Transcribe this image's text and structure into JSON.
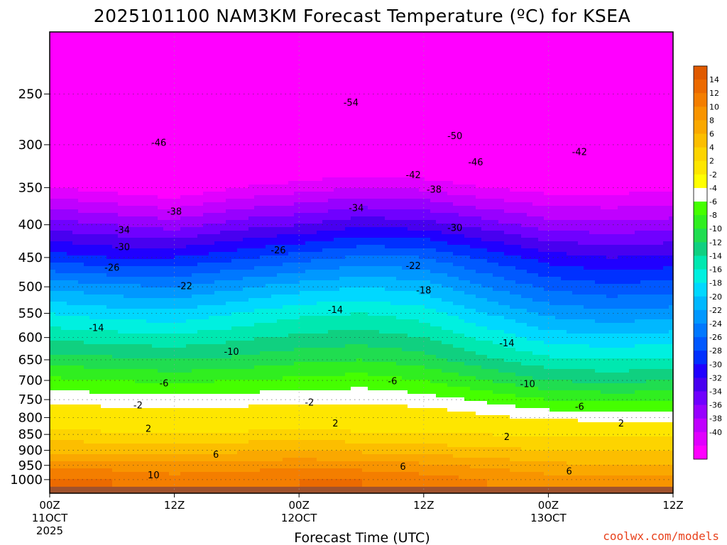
{
  "chart_data": {
    "type": "heatmap",
    "title": "2025101100 NAM3KM Forecast Temperature (ºC) for KSEA",
    "xlabel": "Forecast Time (UTC)",
    "ylabel": "",
    "y_log_pressure": true,
    "ylim": [
      1050,
      200
    ],
    "y_ticks": [
      250,
      300,
      350,
      400,
      450,
      500,
      550,
      600,
      650,
      700,
      750,
      800,
      850,
      900,
      950,
      1000
    ],
    "x_range_hours": [
      0,
      60
    ],
    "x_ticks": [
      {
        "hour": 0,
        "lines": [
          "00Z",
          "11OCT",
          "2025"
        ]
      },
      {
        "hour": 12,
        "lines": [
          "12Z"
        ]
      },
      {
        "hour": 24,
        "lines": [
          "00Z",
          "12OCT"
        ]
      },
      {
        "hour": 36,
        "lines": [
          "12Z"
        ]
      },
      {
        "hour": 48,
        "lines": [
          "00Z",
          "13OCT"
        ]
      },
      {
        "hour": 60,
        "lines": [
          "12Z"
        ]
      }
    ],
    "grid": true,
    "colorbar": {
      "placement": "right",
      "labels": [
        "14",
        "12",
        "10",
        "8",
        "6",
        "4",
        "2",
        "-2",
        "-4",
        "-6",
        "-8",
        "-10",
        "-12",
        "-14",
        "-16",
        "-18",
        "-20",
        "-22",
        "-24",
        "-26",
        "-28",
        "-30",
        "-32",
        "-34",
        "-36",
        "-38",
        "-40"
      ],
      "colors": [
        "#e05a00",
        "#ec6a00",
        "#f47e00",
        "#f89400",
        "#faa800",
        "#fcbe00",
        "#fdd400",
        "#fee600",
        "#ffff00",
        "#ffffff",
        "#45ff00",
        "#30ee20",
        "#20dd50",
        "#10d080",
        "#00e8b0",
        "#00f0e0",
        "#00d8ff",
        "#00b8ff",
        "#0098ff",
        "#0078ff",
        "#0058ff",
        "#0030ff",
        "#2000ff",
        "#4800f0",
        "#7000ff",
        "#9800ff",
        "#c000ff",
        "#e000ff",
        "#ff00ff"
      ]
    },
    "surface_color": "#a0522d",
    "profiles": [
      {
        "hour": 0,
        "levels": [
          [
            1000,
            12
          ],
          [
            950,
            9
          ],
          [
            900,
            5.5
          ],
          [
            850,
            3
          ],
          [
            800,
            0
          ],
          [
            750,
            -2.5
          ],
          [
            700,
            -5.5
          ],
          [
            650,
            -9
          ],
          [
            600,
            -12.5
          ],
          [
            550,
            -16
          ],
          [
            500,
            -20.5
          ],
          [
            450,
            -27
          ],
          [
            400,
            -33
          ],
          [
            350,
            -40
          ],
          [
            300,
            -47
          ],
          [
            250,
            -53
          ],
          [
            200,
            -57
          ]
        ]
      },
      {
        "hour": 6,
        "levels": [
          [
            1000,
            12
          ],
          [
            950,
            9
          ],
          [
            900,
            5.5
          ],
          [
            850,
            2.5
          ],
          [
            800,
            -0.5
          ],
          [
            750,
            -3
          ],
          [
            700,
            -6
          ],
          [
            650,
            -9.5
          ],
          [
            600,
            -13
          ],
          [
            550,
            -17
          ],
          [
            500,
            -21.5
          ],
          [
            450,
            -28
          ],
          [
            400,
            -34
          ],
          [
            350,
            -41
          ],
          [
            300,
            -48
          ],
          [
            250,
            -53
          ],
          [
            200,
            -57
          ]
        ]
      },
      {
        "hour": 12,
        "levels": [
          [
            1000,
            11
          ],
          [
            950,
            8.5
          ],
          [
            900,
            5.5
          ],
          [
            850,
            2.5
          ],
          [
            800,
            -0.5
          ],
          [
            750,
            -3
          ],
          [
            700,
            -6.5
          ],
          [
            650,
            -10
          ],
          [
            600,
            -13.5
          ],
          [
            550,
            -17.5
          ],
          [
            500,
            -22
          ],
          [
            450,
            -28
          ],
          [
            400,
            -35
          ],
          [
            350,
            -42
          ],
          [
            300,
            -49
          ],
          [
            250,
            -54
          ],
          [
            200,
            -57
          ]
        ]
      },
      {
        "hour": 18,
        "levels": [
          [
            1000,
            11.5
          ],
          [
            950,
            9
          ],
          [
            900,
            5.5
          ],
          [
            850,
            2.5
          ],
          [
            800,
            -0.5
          ],
          [
            750,
            -3
          ],
          [
            700,
            -6
          ],
          [
            650,
            -9.5
          ],
          [
            600,
            -12.5
          ],
          [
            550,
            -16
          ],
          [
            500,
            -20.5
          ],
          [
            450,
            -26.5
          ],
          [
            400,
            -33
          ],
          [
            350,
            -40
          ],
          [
            300,
            -47
          ],
          [
            250,
            -53
          ],
          [
            200,
            -57
          ]
        ]
      },
      {
        "hour": 24,
        "levels": [
          [
            1000,
            12
          ],
          [
            950,
            9.5
          ],
          [
            900,
            6
          ],
          [
            850,
            3
          ],
          [
            800,
            0
          ],
          [
            750,
            -2.5
          ],
          [
            700,
            -5.5
          ],
          [
            650,
            -8.5
          ],
          [
            600,
            -11.5
          ],
          [
            550,
            -14.5
          ],
          [
            500,
            -19
          ],
          [
            450,
            -25
          ],
          [
            400,
            -32
          ],
          [
            350,
            -39
          ],
          [
            300,
            -46
          ],
          [
            250,
            -53
          ],
          [
            200,
            -57
          ]
        ]
      },
      {
        "hour": 30,
        "levels": [
          [
            1000,
            12
          ],
          [
            950,
            9
          ],
          [
            900,
            5.5
          ],
          [
            850,
            2.5
          ],
          [
            800,
            -0.5
          ],
          [
            750,
            -2.5
          ],
          [
            700,
            -5
          ],
          [
            650,
            -8
          ],
          [
            600,
            -11
          ],
          [
            550,
            -14
          ],
          [
            500,
            -18
          ],
          [
            450,
            -23.5
          ],
          [
            400,
            -30.5
          ],
          [
            350,
            -38
          ],
          [
            300,
            -45.5
          ],
          [
            250,
            -53
          ],
          [
            200,
            -57
          ]
        ]
      },
      {
        "hour": 36,
        "levels": [
          [
            1000,
            11
          ],
          [
            950,
            8.5
          ],
          [
            900,
            5
          ],
          [
            850,
            2.5
          ],
          [
            800,
            -0.5
          ],
          [
            750,
            -3
          ],
          [
            700,
            -6
          ],
          [
            650,
            -9
          ],
          [
            600,
            -12
          ],
          [
            550,
            -15
          ],
          [
            500,
            -19
          ],
          [
            450,
            -24
          ],
          [
            400,
            -31
          ],
          [
            350,
            -38.5
          ],
          [
            300,
            -46
          ],
          [
            250,
            -53
          ],
          [
            200,
            -57
          ]
        ]
      },
      {
        "hour": 42,
        "levels": [
          [
            1000,
            10
          ],
          [
            950,
            7.5
          ],
          [
            900,
            4.5
          ],
          [
            850,
            2
          ],
          [
            800,
            -1.5
          ],
          [
            750,
            -4.5
          ],
          [
            700,
            -8
          ],
          [
            650,
            -11.5
          ],
          [
            600,
            -14.5
          ],
          [
            550,
            -18
          ],
          [
            500,
            -22
          ],
          [
            450,
            -26.5
          ],
          [
            400,
            -33
          ],
          [
            350,
            -40
          ],
          [
            300,
            -46.5
          ],
          [
            250,
            -52
          ],
          [
            200,
            -56
          ]
        ]
      },
      {
        "hour": 48,
        "levels": [
          [
            1000,
            9
          ],
          [
            950,
            6.5
          ],
          [
            900,
            4
          ],
          [
            850,
            1.5
          ],
          [
            800,
            -2.5
          ],
          [
            750,
            -6
          ],
          [
            700,
            -10
          ],
          [
            650,
            -13.5
          ],
          [
            600,
            -17
          ],
          [
            550,
            -20.5
          ],
          [
            500,
            -24.5
          ],
          [
            450,
            -29
          ],
          [
            400,
            -35
          ],
          [
            350,
            -41
          ],
          [
            300,
            -46
          ],
          [
            250,
            -50
          ],
          [
            200,
            -54
          ]
        ]
      },
      {
        "hour": 54,
        "levels": [
          [
            1000,
            8.5
          ],
          [
            950,
            6
          ],
          [
            900,
            4
          ],
          [
            850,
            1.5
          ],
          [
            800,
            -3
          ],
          [
            750,
            -6.5
          ],
          [
            700,
            -10.5
          ],
          [
            650,
            -14
          ],
          [
            600,
            -17.5
          ],
          [
            550,
            -21.5
          ],
          [
            500,
            -25.5
          ],
          [
            450,
            -30
          ],
          [
            400,
            -35.5
          ],
          [
            350,
            -41
          ],
          [
            300,
            -45
          ],
          [
            250,
            -49
          ],
          [
            200,
            -53
          ]
        ]
      },
      {
        "hour": 60,
        "levels": [
          [
            1000,
            8.5
          ],
          [
            950,
            6
          ],
          [
            900,
            4
          ],
          [
            850,
            1.5
          ],
          [
            800,
            -3
          ],
          [
            750,
            -6.5
          ],
          [
            700,
            -10
          ],
          [
            650,
            -13.5
          ],
          [
            600,
            -17
          ],
          [
            550,
            -21
          ],
          [
            500,
            -25
          ],
          [
            450,
            -29.5
          ],
          [
            400,
            -35
          ],
          [
            350,
            -40.5
          ],
          [
            300,
            -44.5
          ],
          [
            250,
            -48
          ],
          [
            200,
            -52
          ]
        ]
      }
    ],
    "contour_labels": [
      {
        "text": "-54",
        "hour": 29,
        "p": 258
      },
      {
        "text": "-50",
        "hour": 39,
        "p": 291
      },
      {
        "text": "-46",
        "hour": 10.5,
        "p": 298
      },
      {
        "text": "-46",
        "hour": 41,
        "p": 320
      },
      {
        "text": "-42",
        "hour": 51,
        "p": 308
      },
      {
        "text": "-42",
        "hour": 35,
        "p": 335
      },
      {
        "text": "-38",
        "hour": 37,
        "p": 353
      },
      {
        "text": "-38",
        "hour": 12,
        "p": 382
      },
      {
        "text": "-34",
        "hour": 29.5,
        "p": 377
      },
      {
        "text": "-34",
        "hour": 7,
        "p": 408
      },
      {
        "text": "-30",
        "hour": 39,
        "p": 405
      },
      {
        "text": "-30",
        "hour": 7,
        "p": 434
      },
      {
        "text": "-26",
        "hour": 22,
        "p": 439
      },
      {
        "text": "-26",
        "hour": 6,
        "p": 467
      },
      {
        "text": "-22",
        "hour": 35,
        "p": 464
      },
      {
        "text": "-22",
        "hour": 13,
        "p": 499
      },
      {
        "text": "-18",
        "hour": 36,
        "p": 507
      },
      {
        "text": "-14",
        "hour": 27.5,
        "p": 544
      },
      {
        "text": "-14",
        "hour": 4.5,
        "p": 580
      },
      {
        "text": "-14",
        "hour": 44,
        "p": 613
      },
      {
        "text": "-10",
        "hour": 17.5,
        "p": 632
      },
      {
        "text": "-10",
        "hour": 46,
        "p": 710
      },
      {
        "text": "-6",
        "hour": 11,
        "p": 708
      },
      {
        "text": "-6",
        "hour": 33,
        "p": 703
      },
      {
        "text": "-6",
        "hour": 51,
        "p": 770
      },
      {
        "text": "-2",
        "hour": 8.5,
        "p": 766
      },
      {
        "text": "-2",
        "hour": 25,
        "p": 758
      },
      {
        "text": "2",
        "hour": 9.5,
        "p": 833
      },
      {
        "text": "2",
        "hour": 27.5,
        "p": 818
      },
      {
        "text": "2",
        "hour": 44,
        "p": 858
      },
      {
        "text": "2",
        "hour": 55,
        "p": 818
      },
      {
        "text": "6",
        "hour": 16,
        "p": 915
      },
      {
        "text": "6",
        "hour": 34,
        "p": 956
      },
      {
        "text": "6",
        "hour": 50,
        "p": 972
      },
      {
        "text": "10",
        "hour": 10,
        "p": 985
      }
    ]
  },
  "credit": "coolwx.com/models"
}
